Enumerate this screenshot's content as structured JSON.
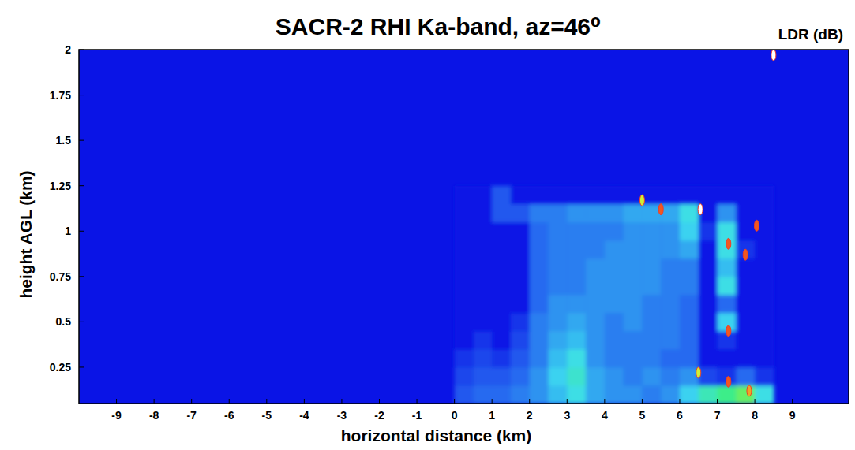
{
  "chart_data": {
    "type": "heatmap",
    "title": "SACR-2 RHI Ka-band, az=46⁰",
    "colorbar_label": "LDR (dB)",
    "x_label": "horizontal distance (km)",
    "y_label": "height AGL (km)",
    "xlim": [
      -10,
      10.5
    ],
    "ylim": [
      0.05,
      2
    ],
    "xticks": [
      -9,
      -8,
      -7,
      -6,
      -5,
      -4,
      -3,
      -2,
      -1,
      0,
      1,
      2,
      3,
      4,
      5,
      6,
      7,
      8,
      9
    ],
    "yticks": [
      0.25,
      0.5,
      0.75,
      1,
      1.25,
      1.5,
      1.75,
      2
    ],
    "zlim": [
      -35,
      0
    ],
    "x_edges": [
      0,
      0.5,
      1,
      1.5,
      2,
      2.5,
      3,
      3.5,
      4,
      4.5,
      5,
      5.5,
      6,
      6.5,
      7,
      7.5,
      8,
      8.5
    ],
    "y_edges": [
      0.05,
      0.15,
      0.25,
      0.35,
      0.45,
      0.55,
      0.65,
      0.75,
      0.85,
      0.95,
      1.05,
      1.15,
      1.25
    ],
    "z": [
      [
        -31,
        -30,
        -30,
        -29,
        -28,
        -26,
        -24,
        -27,
        -28,
        -28,
        -29,
        -28,
        -25,
        -22,
        -20,
        -18,
        -24
      ],
      [
        -32,
        -31,
        -31,
        -30,
        -28,
        -25,
        -23,
        -27,
        -28,
        -29,
        -28,
        -29,
        -28,
        -32,
        -33,
        -30,
        -33
      ],
      [
        -33,
        -32,
        -33,
        -31,
        -29,
        -26,
        -24,
        -28,
        -29,
        -29,
        -29,
        -30,
        -30,
        -35,
        -35,
        -35,
        -35
      ],
      [
        -35,
        -33,
        -35,
        -32,
        -29,
        -27,
        -26,
        -28,
        -29,
        -29,
        -29,
        -29,
        -30,
        -35,
        -33,
        -35,
        -35
      ],
      [
        -35,
        -35,
        -35,
        -33,
        -29,
        -28,
        -27,
        -28,
        -29,
        -28,
        -29,
        -29,
        -30,
        -35,
        -25,
        -35,
        -35
      ],
      [
        -35,
        -35,
        -35,
        -35,
        -30,
        -28,
        -28,
        -28,
        -28,
        -28,
        -29,
        -29,
        -30,
        -35,
        -30,
        -35,
        -35
      ],
      [
        -35,
        -35,
        -35,
        -35,
        -30,
        -29,
        -29,
        -28,
        -28,
        -28,
        -28,
        -29,
        -29,
        -35,
        -24,
        -35,
        -35
      ],
      [
        -35,
        -35,
        -35,
        -35,
        -30,
        -29,
        -29,
        -28,
        -28,
        -28,
        -28,
        -29,
        -29,
        -35,
        -26,
        -35,
        -35
      ],
      [
        -35,
        -35,
        -35,
        -35,
        -30,
        -29,
        -29,
        -29,
        -28,
        -28,
        -28,
        -28,
        -27,
        -35,
        -24,
        -33,
        -35
      ],
      [
        -35,
        -35,
        -35,
        -35,
        -30,
        -29,
        -29,
        -29,
        -29,
        -28,
        -28,
        -28,
        -25,
        -33,
        -24,
        -35,
        -35
      ],
      [
        -35,
        -35,
        -31,
        -31,
        -29,
        -29,
        -28,
        -28,
        -28,
        -27,
        -27,
        -27,
        -24,
        -35,
        -28,
        -35,
        -35
      ],
      [
        -35,
        -35,
        -31,
        -35,
        -35,
        -35,
        -35,
        -35,
        -35,
        -35,
        -35,
        -35,
        -35,
        -35,
        -35,
        -35,
        -35
      ]
    ],
    "spots": {
      "x": [
        8.5,
        6.55,
        7.3,
        7.3,
        7.75,
        8.05,
        7.3,
        5.5,
        7.85,
        6.5,
        5.0
      ],
      "y": [
        1.97,
        1.12,
        0.93,
        0.45,
        0.87,
        1.03,
        0.17,
        1.12,
        0.12,
        0.22,
        1.17
      ],
      "values": [
        0,
        0,
        -10,
        -10,
        -10,
        -10,
        -10,
        -10,
        -12,
        -15,
        -15
      ]
    }
  }
}
